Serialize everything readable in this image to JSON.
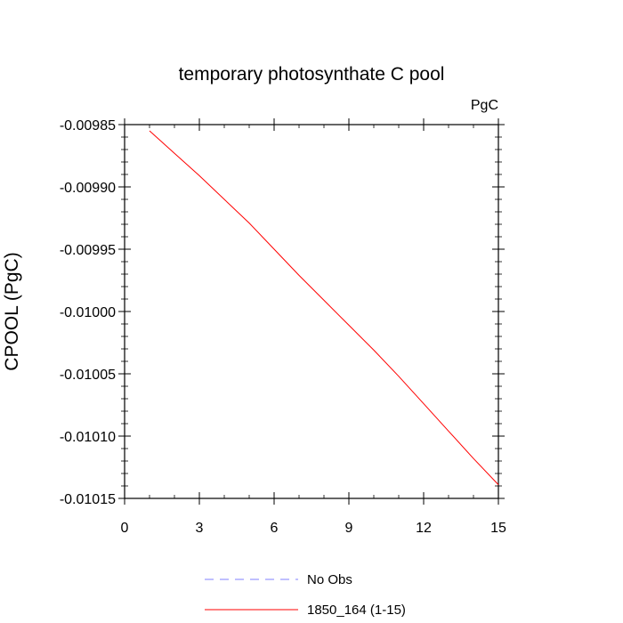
{
  "chart_data": {
    "type": "line",
    "title": "temporary photosynthate C pool",
    "units": "PgC",
    "ylabel": "CPOOL  (PgC)",
    "xlabel": "",
    "xlim": [
      0,
      15
    ],
    "ylim": [
      -0.01015,
      -0.00985
    ],
    "xticks": [
      0,
      3,
      6,
      9,
      12,
      15
    ],
    "xtick_labels": [
      "0",
      "3",
      "6",
      "9",
      "12",
      "15"
    ],
    "yticks": [
      -0.00985,
      -0.0099,
      -0.00995,
      -0.01,
      -0.01005,
      -0.0101,
      -0.01015
    ],
    "ytick_labels": [
      "-0.00985",
      "-0.00990",
      "-0.00995",
      "-0.01000",
      "-0.01005",
      "-0.01010",
      "-0.01015"
    ],
    "grid": false,
    "legend_position": "bottom",
    "series": [
      {
        "name": "No Obs",
        "color": "#8080ff",
        "style": "dashed",
        "x": [],
        "y": []
      },
      {
        "name": "1850_164 (1-15)",
        "color": "#ff0000",
        "style": "solid",
        "x": [
          1,
          2,
          3,
          4,
          5,
          6,
          7,
          8,
          9,
          10,
          11,
          12,
          13,
          14,
          15
        ],
        "y": [
          -0.009855,
          -0.009873,
          -0.009891,
          -0.00991,
          -0.009929,
          -0.00995,
          -0.009971,
          -0.009991,
          -0.010011,
          -0.010031,
          -0.010052,
          -0.010074,
          -0.010096,
          -0.010118,
          -0.010139
        ]
      }
    ]
  }
}
